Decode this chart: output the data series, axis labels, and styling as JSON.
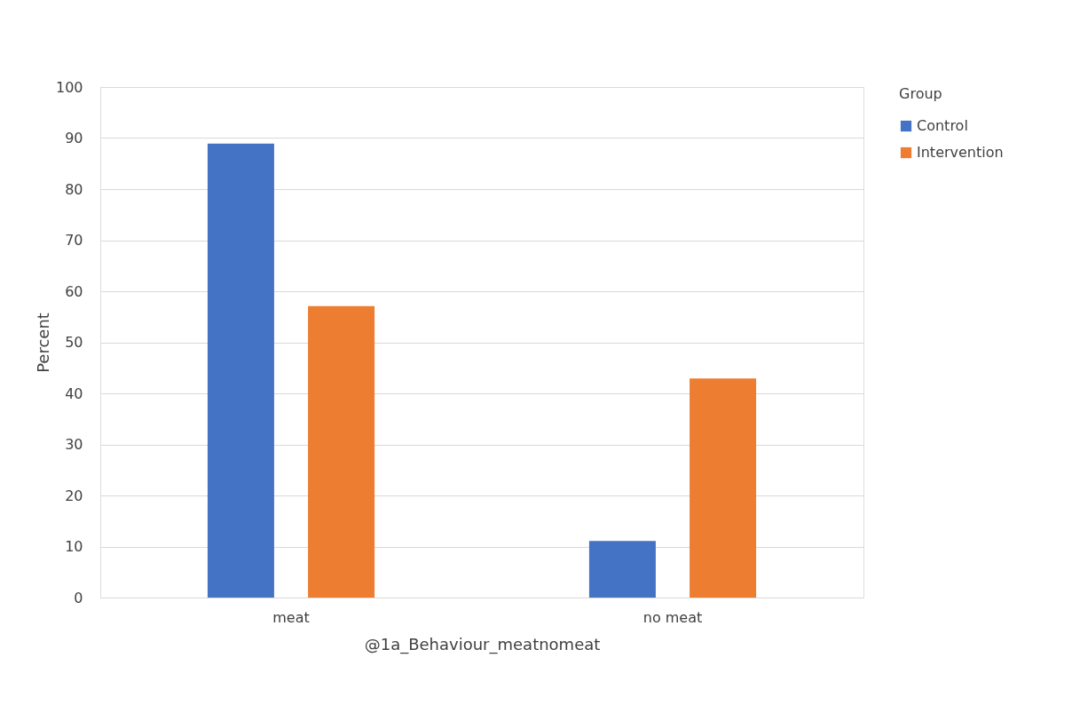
{
  "chart_data": {
    "type": "bar",
    "xlabel": "@1a_Behaviour_meatnomeat",
    "ylabel": "Percent",
    "legend_title": "Group",
    "legend": "right",
    "categories": [
      "meat",
      "no meat"
    ],
    "series": [
      {
        "name": "Control",
        "color": "#4472c4",
        "values": [
          88.9,
          11.1
        ]
      },
      {
        "name": "Intervention",
        "color": "#ed7d31",
        "values": [
          57.1,
          42.9
        ]
      }
    ],
    "ylim": [
      0,
      100
    ],
    "yticks": [
      0,
      10,
      20,
      30,
      40,
      50,
      60,
      70,
      80,
      90,
      100
    ],
    "grid": "y"
  }
}
